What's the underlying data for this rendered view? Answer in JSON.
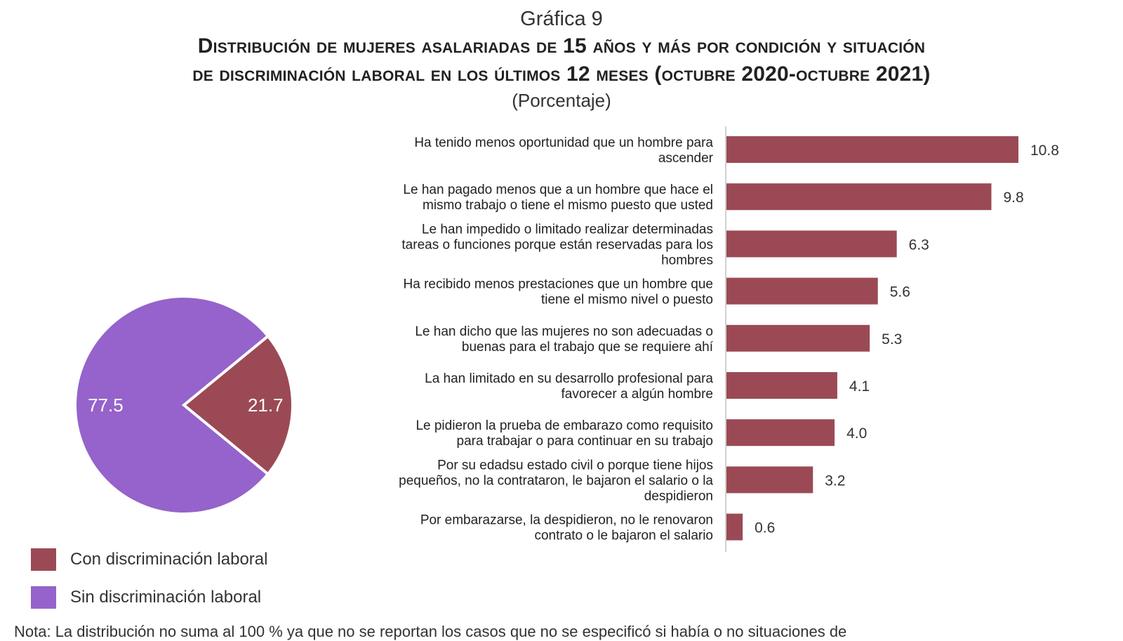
{
  "header": {
    "kicker": "Gráfica 9",
    "title_line1": "Distribución de mujeres asalariadas de 15 años y más por condición y situación",
    "title_line2": "de discriminación laboral en los últimos 12 meses (octubre 2020-octubre 2021)",
    "subtitle": "(Porcentaje)"
  },
  "colors": {
    "con": "#9b4a55",
    "sin": "#9563cb",
    "bars": "#9b4a55"
  },
  "chart_data": [
    {
      "type": "pie",
      "slices": [
        {
          "label": "Con discriminación laboral",
          "value": 21.7,
          "value_label": "21.7"
        },
        {
          "label": "Sin discriminación laboral",
          "value": 77.5,
          "value_label": "77.5"
        }
      ],
      "legend_position": "bottom-left"
    },
    {
      "type": "bar",
      "orientation": "horizontal",
      "categories": [
        "Ha tenido menos oportunidad que un hombre para ascender",
        "Le han pagado menos que a un hombre que hace el mismo trabajo o tiene el mismo puesto que usted",
        "Le han impedido o limitado realizar determinadas tareas o funciones porque están reservadas para los hombres",
        "Ha recibido menos prestaciones que un hombre que tiene el mismo nivel o puesto",
        "Le han dicho que las mujeres no son adecuadas o buenas para el trabajo que se requiere ahí",
        "La han limitado en su desarrollo profesional para favorecer a algún hombre",
        "Le pidieron la prueba de embarazo como requisito para trabajar o para continuar en su trabajo",
        "Por su edadsu estado civil o porque tiene hijos pequeños, no la contrataron, le bajaron el salario o la despidieron",
        "Por embarazarse, la despidieron, no le renovaron contrato o le bajaron el salario"
      ],
      "category_lines": [
        [
          "Ha tenido menos oportunidad que un hombre para",
          "ascender"
        ],
        [
          "Le han pagado menos que a un hombre que hace el",
          "mismo trabajo o tiene el mismo puesto que usted"
        ],
        [
          "Le han impedido o limitado realizar determinadas",
          "tareas o funciones porque están reservadas para los",
          "hombres"
        ],
        [
          "Ha recibido menos prestaciones que un hombre que",
          "tiene el mismo nivel o puesto"
        ],
        [
          "Le han dicho que las mujeres no son adecuadas o",
          "buenas para el trabajo que se requiere ahí"
        ],
        [
          "La han limitado en su desarrollo profesional para",
          "favorecer a algún hombre"
        ],
        [
          "Le pidieron la prueba de embarazo como requisito",
          "para trabajar o para continuar en su trabajo"
        ],
        [
          "Por su edadsu estado civil o porque tiene hijos",
          "pequeños, no la contrataron, le bajaron el salario o la",
          "despidieron"
        ],
        [
          "Por embarazarse, la despidieron, no le renovaron",
          "contrato o le bajaron el salario"
        ]
      ],
      "values": [
        10.8,
        9.8,
        6.3,
        5.6,
        5.3,
        4.1,
        4.0,
        3.2,
        0.6
      ],
      "value_labels": [
        "10.8",
        "9.8",
        "6.3",
        "5.6",
        "5.3",
        "4.1",
        "4.0",
        "3.2",
        "0.6"
      ],
      "xlim": [
        0,
        10.8
      ],
      "grid": false
    }
  ],
  "note": "Nota: La distribución no suma al 100 % ya que no se reportan los casos que no se especificó si había o no situaciones de"
}
